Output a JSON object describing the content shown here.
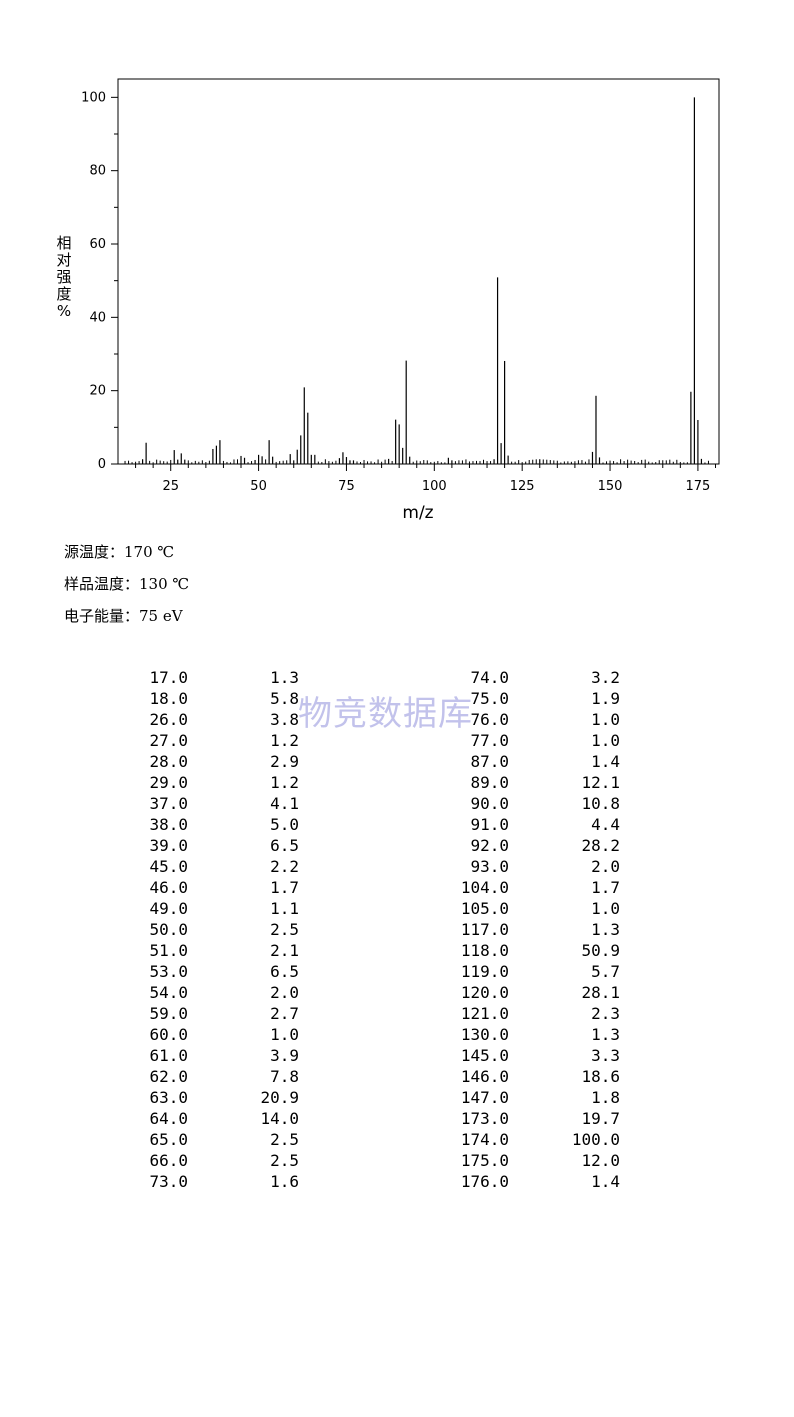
{
  "chart_data": {
    "type": "bar",
    "xlabel": "m/z",
    "ylabel": "相对强度%",
    "xlim": [
      10,
      181
    ],
    "ylim": [
      0,
      105
    ],
    "xticks": [
      25,
      50,
      75,
      100,
      125,
      150,
      175
    ],
    "yticks": [
      0,
      20,
      40,
      60,
      80,
      100
    ],
    "x": [
      17,
      18,
      26,
      27,
      28,
      29,
      37,
      38,
      39,
      45,
      46,
      49,
      50,
      51,
      53,
      54,
      59,
      60,
      61,
      62,
      63,
      64,
      65,
      66,
      73,
      74,
      75,
      76,
      77,
      87,
      89,
      90,
      91,
      92,
      93,
      104,
      105,
      117,
      118,
      119,
      120,
      121,
      130,
      145,
      146,
      147,
      173,
      174,
      175,
      176
    ],
    "values": [
      1.3,
      5.8,
      3.8,
      1.2,
      2.9,
      1.2,
      4.1,
      5.0,
      6.5,
      2.2,
      1.7,
      1.1,
      2.5,
      2.1,
      6.5,
      2.0,
      2.7,
      1.0,
      3.9,
      7.8,
      20.9,
      14.0,
      2.5,
      2.5,
      1.6,
      3.2,
      1.9,
      1.0,
      1.0,
      1.4,
      12.1,
      10.8,
      4.4,
      28.2,
      2.0,
      1.7,
      1.0,
      1.3,
      50.9,
      5.7,
      28.1,
      2.3,
      1.3,
      3.3,
      18.6,
      1.8,
      19.7,
      100.0,
      12.0,
      1.4
    ]
  },
  "conditions": [
    {
      "label": "源温度：",
      "value": "170 ℃"
    },
    {
      "label": "样品温度：",
      "value": "130 ℃"
    },
    {
      "label": "电子能量：",
      "value": "75 eV"
    }
  ],
  "peak_table": {
    "left": [
      [
        "17.0",
        "1.3"
      ],
      [
        "18.0",
        "5.8"
      ],
      [
        "26.0",
        "3.8"
      ],
      [
        "27.0",
        "1.2"
      ],
      [
        "28.0",
        "2.9"
      ],
      [
        "29.0",
        "1.2"
      ],
      [
        "37.0",
        "4.1"
      ],
      [
        "38.0",
        "5.0"
      ],
      [
        "39.0",
        "6.5"
      ],
      [
        "45.0",
        "2.2"
      ],
      [
        "46.0",
        "1.7"
      ],
      [
        "49.0",
        "1.1"
      ],
      [
        "50.0",
        "2.5"
      ],
      [
        "51.0",
        "2.1"
      ],
      [
        "53.0",
        "6.5"
      ],
      [
        "54.0",
        "2.0"
      ],
      [
        "59.0",
        "2.7"
      ],
      [
        "60.0",
        "1.0"
      ],
      [
        "61.0",
        "3.9"
      ],
      [
        "62.0",
        "7.8"
      ],
      [
        "63.0",
        "20.9"
      ],
      [
        "64.0",
        "14.0"
      ],
      [
        "65.0",
        "2.5"
      ],
      [
        "66.0",
        "2.5"
      ],
      [
        "73.0",
        "1.6"
      ]
    ],
    "right": [
      [
        "74.0",
        "3.2"
      ],
      [
        "75.0",
        "1.9"
      ],
      [
        "76.0",
        "1.0"
      ],
      [
        "77.0",
        "1.0"
      ],
      [
        "87.0",
        "1.4"
      ],
      [
        "89.0",
        "12.1"
      ],
      [
        "90.0",
        "10.8"
      ],
      [
        "91.0",
        "4.4"
      ],
      [
        "92.0",
        "28.2"
      ],
      [
        "93.0",
        "2.0"
      ],
      [
        "104.0",
        "1.7"
      ],
      [
        "105.0",
        "1.0"
      ],
      [
        "117.0",
        "1.3"
      ],
      [
        "118.0",
        "50.9"
      ],
      [
        "119.0",
        "5.7"
      ],
      [
        "120.0",
        "28.1"
      ],
      [
        "121.0",
        "2.3"
      ],
      [
        "130.0",
        "1.3"
      ],
      [
        "145.0",
        "3.3"
      ],
      [
        "146.0",
        "18.6"
      ],
      [
        "147.0",
        "1.8"
      ],
      [
        "173.0",
        "19.7"
      ],
      [
        "174.0",
        "100.0"
      ],
      [
        "175.0",
        "12.0"
      ],
      [
        "176.0",
        "1.4"
      ]
    ]
  },
  "watermark": "物竞数据库"
}
